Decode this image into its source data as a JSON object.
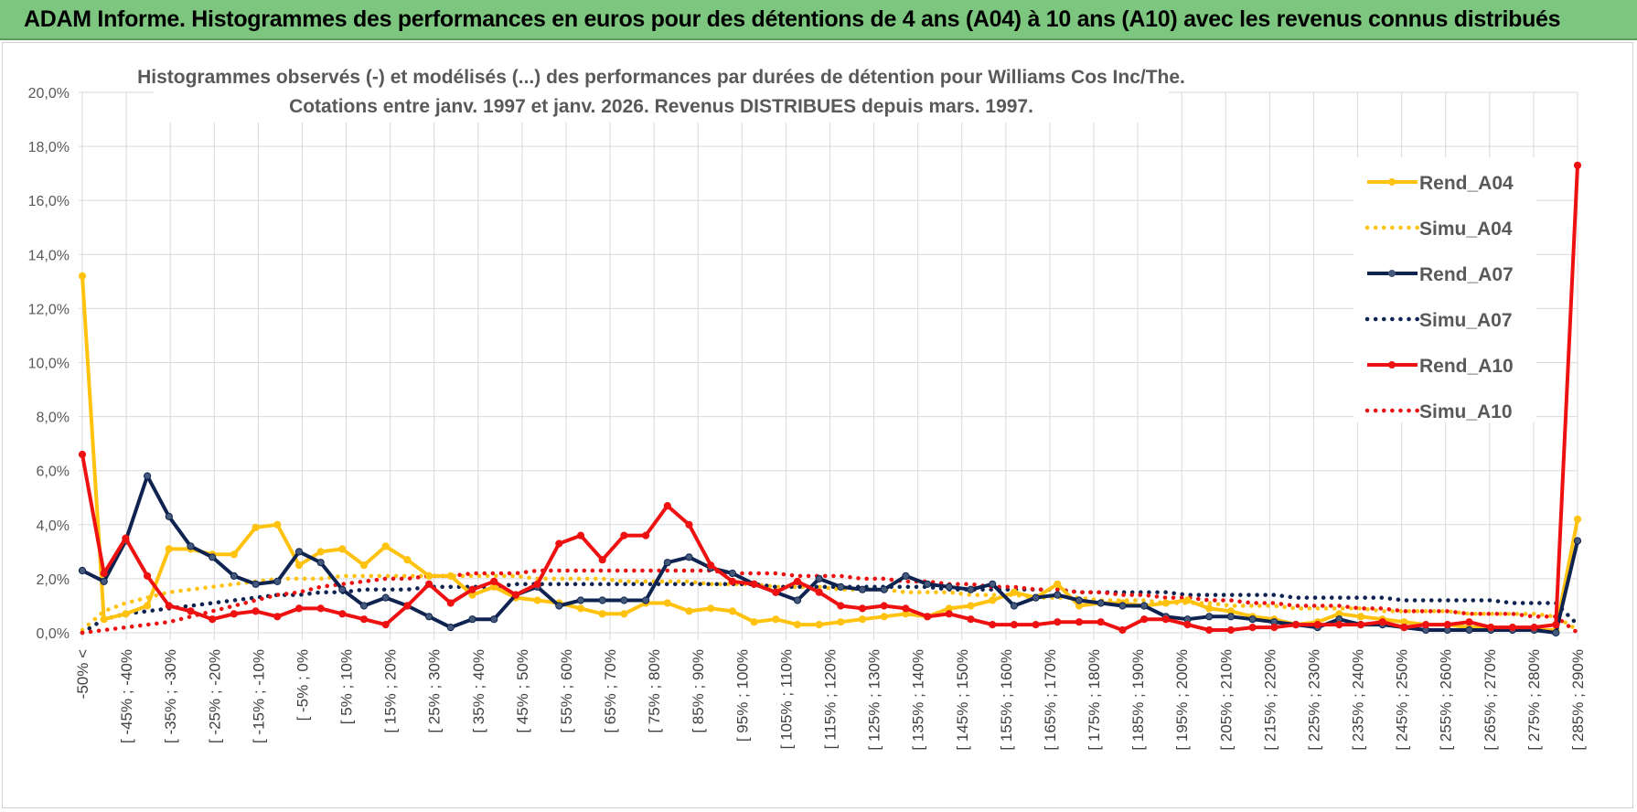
{
  "banner": {
    "title": "ADAM Informe. Histogrammes des performances en euros pour des détentions de 4 ans (A04) à 10 ans (A10) avec les revenus connus distribués"
  },
  "colors": {
    "banner": "#7dc67f",
    "a04": "#ffc20e",
    "a07": "#0f2350",
    "a10": "#ee1111",
    "grid": "#d9d9d9"
  },
  "chart_data": {
    "type": "line",
    "title": "Histogrammes observés (-) et modélisés (...) des performances par durées de détention pour Williams Cos Inc/The.",
    "subtitle": "Cotations entre janv. 1997 et janv. 2026. Revenus DISTRIBUES depuis mars. 1997.",
    "xlabel": "",
    "ylabel": "",
    "ylim": [
      0,
      20
    ],
    "yticks": [
      "0,0%",
      "2,0%",
      "4,0%",
      "6,0%",
      "8,0%",
      "10,0%",
      "12,0%",
      "14,0%",
      "16,0%",
      "18,0%",
      "20,0%"
    ],
    "grid": true,
    "legend_position": "top-right",
    "xtick_labels": [
      "-50% <",
      "[ -45% ; -40%",
      "[ -35% ; -30%",
      "[ -25% ; -20%",
      "[ -15% ; -10%",
      "[ -5% ; 0%",
      "[ 5% ; 10%",
      "[ 15% ; 20%",
      "[ 25% ; 30%",
      "[ 35% ; 40%",
      "[ 45% ; 50%",
      "[ 55% ; 60%",
      "[ 65% ; 70%",
      "[ 75% ; 80%",
      "[ 85% ; 90%",
      "[ 95% ; 100%",
      "[ 105% ; 110%",
      "[ 115% ; 120%",
      "[ 125% ; 130%",
      "[ 135% ; 140%",
      "[ 145% ; 150%",
      "[ 155% ; 160%",
      "[ 165% ; 170%",
      "[ 175% ; 180%",
      "[ 185% ; 190%",
      "[ 195% ; 200%",
      "[ 205% ; 210%",
      "[ 215% ; 220%",
      "[ 225% ; 230%",
      "[ 235% ; 240%",
      "[ 245% ; 250%",
      "[ 255% ; 260%",
      "[ 265% ; 270%",
      "[ 275% ; 280%",
      "[ 285% ; 290%"
    ],
    "n_points": 70,
    "series": [
      {
        "name": "Rend_A04",
        "style": "solid",
        "color": "#ffc20e",
        "values": [
          13.2,
          0.5,
          0.7,
          1.0,
          3.1,
          3.1,
          2.9,
          2.9,
          3.9,
          4.0,
          2.5,
          3.0,
          3.1,
          2.5,
          3.2,
          2.7,
          2.1,
          2.1,
          1.4,
          1.7,
          1.3,
          1.2,
          1.1,
          0.9,
          0.7,
          0.7,
          1.1,
          1.1,
          0.8,
          0.9,
          0.8,
          0.4,
          0.5,
          0.3,
          0.3,
          0.4,
          0.5,
          0.6,
          0.7,
          0.6,
          0.9,
          1.0,
          1.2,
          1.5,
          1.3,
          1.8,
          1.0,
          1.1,
          1.1,
          1.0,
          1.1,
          1.2,
          0.9,
          0.8,
          0.6,
          0.5,
          0.3,
          0.4,
          0.7,
          0.6,
          0.5,
          0.4,
          0.3,
          0.3,
          0.2,
          0.2,
          0.2,
          0.1,
          0.1,
          4.2
        ]
      },
      {
        "name": "Simu_A04",
        "style": "dotted",
        "color": "#ffc20e",
        "values": [
          0.1,
          0.8,
          1.1,
          1.3,
          1.5,
          1.6,
          1.7,
          1.8,
          1.9,
          2.0,
          2.0,
          2.0,
          2.1,
          2.1,
          2.1,
          2.1,
          2.1,
          2.1,
          2.1,
          2.1,
          2.1,
          2.0,
          2.0,
          2.0,
          2.0,
          1.9,
          1.9,
          1.9,
          1.9,
          1.8,
          1.8,
          1.8,
          1.7,
          1.7,
          1.7,
          1.6,
          1.6,
          1.6,
          1.5,
          1.5,
          1.5,
          1.4,
          1.4,
          1.4,
          1.3,
          1.3,
          1.3,
          1.2,
          1.2,
          1.2,
          1.1,
          1.1,
          1.1,
          1.0,
          1.0,
          1.0,
          0.9,
          0.9,
          0.9,
          0.9,
          0.8,
          0.8,
          0.8,
          0.8,
          0.7,
          0.7,
          0.7,
          0.7,
          0.6,
          0.1
        ]
      },
      {
        "name": "Rend_A07",
        "style": "solid",
        "color": "#0f2350",
        "values": [
          2.3,
          1.9,
          3.4,
          5.8,
          4.3,
          3.2,
          2.8,
          2.1,
          1.8,
          1.9,
          3.0,
          2.6,
          1.6,
          1.0,
          1.3,
          1.0,
          0.6,
          0.2,
          0.5,
          0.5,
          1.4,
          1.7,
          1.0,
          1.2,
          1.2,
          1.2,
          1.2,
          2.6,
          2.8,
          2.4,
          2.2,
          1.8,
          1.5,
          1.2,
          2.0,
          1.7,
          1.6,
          1.6,
          2.1,
          1.8,
          1.7,
          1.6,
          1.8,
          1.0,
          1.3,
          1.4,
          1.2,
          1.1,
          1.0,
          1.0,
          0.6,
          0.5,
          0.6,
          0.6,
          0.5,
          0.4,
          0.3,
          0.2,
          0.5,
          0.3,
          0.3,
          0.2,
          0.1,
          0.1,
          0.1,
          0.1,
          0.1,
          0.1,
          0.0,
          3.4
        ]
      },
      {
        "name": "Simu_A07",
        "style": "dotted",
        "color": "#0f2350",
        "values": [
          0.0,
          0.5,
          0.7,
          0.8,
          0.9,
          1.0,
          1.1,
          1.2,
          1.3,
          1.4,
          1.4,
          1.5,
          1.5,
          1.6,
          1.6,
          1.6,
          1.7,
          1.7,
          1.7,
          1.7,
          1.8,
          1.8,
          1.8,
          1.8,
          1.8,
          1.8,
          1.8,
          1.8,
          1.8,
          1.8,
          1.8,
          1.8,
          1.7,
          1.7,
          1.7,
          1.7,
          1.7,
          1.7,
          1.7,
          1.7,
          1.6,
          1.6,
          1.6,
          1.6,
          1.6,
          1.6,
          1.5,
          1.5,
          1.5,
          1.5,
          1.5,
          1.4,
          1.4,
          1.4,
          1.4,
          1.4,
          1.3,
          1.3,
          1.3,
          1.3,
          1.3,
          1.2,
          1.2,
          1.2,
          1.2,
          1.2,
          1.1,
          1.1,
          1.1,
          0.3
        ]
      },
      {
        "name": "Rend_A10",
        "style": "solid",
        "color": "#ee1111",
        "values": [
          6.6,
          2.2,
          3.5,
          2.1,
          1.0,
          0.8,
          0.5,
          0.7,
          0.8,
          0.6,
          0.9,
          0.9,
          0.7,
          0.5,
          0.3,
          1.0,
          1.8,
          1.1,
          1.6,
          1.9,
          1.4,
          1.8,
          3.3,
          3.6,
          2.7,
          3.6,
          3.6,
          4.7,
          4.0,
          2.5,
          1.9,
          1.8,
          1.5,
          1.9,
          1.5,
          1.0,
          0.9,
          1.0,
          0.9,
          0.6,
          0.7,
          0.5,
          0.3,
          0.3,
          0.3,
          0.4,
          0.4,
          0.4,
          0.1,
          0.5,
          0.5,
          0.3,
          0.1,
          0.1,
          0.2,
          0.2,
          0.3,
          0.3,
          0.3,
          0.3,
          0.4,
          0.2,
          0.3,
          0.3,
          0.4,
          0.2,
          0.2,
          0.2,
          0.3,
          17.3
        ]
      },
      {
        "name": "Simu_A10",
        "style": "dotted",
        "color": "#ee1111",
        "values": [
          0.0,
          0.1,
          0.2,
          0.3,
          0.4,
          0.6,
          0.8,
          1.0,
          1.2,
          1.4,
          1.5,
          1.7,
          1.8,
          1.9,
          2.0,
          2.0,
          2.1,
          2.1,
          2.2,
          2.2,
          2.2,
          2.3,
          2.3,
          2.3,
          2.3,
          2.3,
          2.3,
          2.3,
          2.3,
          2.3,
          2.2,
          2.2,
          2.2,
          2.1,
          2.1,
          2.1,
          2.0,
          2.0,
          1.9,
          1.9,
          1.8,
          1.8,
          1.7,
          1.7,
          1.6,
          1.6,
          1.5,
          1.5,
          1.4,
          1.4,
          1.3,
          1.3,
          1.2,
          1.2,
          1.1,
          1.1,
          1.0,
          1.0,
          1.0,
          0.9,
          0.9,
          0.8,
          0.8,
          0.8,
          0.7,
          0.7,
          0.7,
          0.6,
          0.6,
          0.0
        ]
      }
    ]
  }
}
